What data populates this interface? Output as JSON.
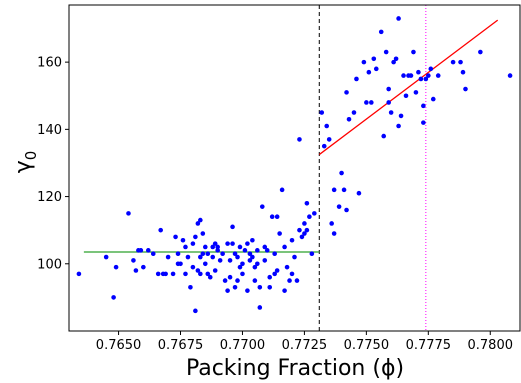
{
  "chart_data": {
    "type": "scatter",
    "title": "",
    "xlabel": "Packing Fraction (ϕ)",
    "ylabel_main": "γ",
    "ylabel_sub": "0",
    "xlim": [
      0.763,
      0.7812
    ],
    "ylim": [
      80,
      177
    ],
    "xticks": [
      0.765,
      0.7675,
      0.77,
      0.7725,
      0.775,
      0.7775,
      0.78
    ],
    "xtick_labels": [
      "0.7650",
      "0.7675",
      "0.7700",
      "0.7725",
      "0.7750",
      "0.7775",
      "0.7800"
    ],
    "yticks": [
      100,
      120,
      140,
      160
    ],
    "ytick_labels": [
      "100",
      "120",
      "140",
      "160"
    ],
    "grid": false,
    "colors": {
      "points": "#0000ff",
      "fit_low": "#2ca02c",
      "fit_high": "#ff0000",
      "vline_dashed": "#000000",
      "vline_dotted": "#ff00ff"
    },
    "series": [
      {
        "values": [
          [
            0.7634,
            97
          ],
          [
            0.7645,
            102
          ],
          [
            0.7648,
            90
          ],
          [
            0.7649,
            99
          ],
          [
            0.7654,
            115
          ],
          [
            0.7656,
            101
          ],
          [
            0.7657,
            98
          ],
          [
            0.7658,
            104
          ],
          [
            0.7659,
            104
          ],
          [
            0.766,
            99
          ],
          [
            0.7662,
            104
          ],
          [
            0.7664,
            103
          ],
          [
            0.7666,
            97
          ],
          [
            0.7667,
            110
          ],
          [
            0.7668,
            97
          ],
          [
            0.7669,
            97
          ],
          [
            0.767,
            102
          ],
          [
            0.7672,
            97
          ],
          [
            0.7673,
            108
          ],
          [
            0.7674,
            100
          ],
          [
            0.7674,
            103
          ],
          [
            0.7675,
            100
          ],
          [
            0.7676,
            107
          ],
          [
            0.7677,
            97
          ],
          [
            0.7677,
            105
          ],
          [
            0.7678,
            102
          ],
          [
            0.7679,
            93
          ],
          [
            0.768,
            106
          ],
          [
            0.768,
            99
          ],
          [
            0.7681,
            86
          ],
          [
            0.7681,
            108
          ],
          [
            0.7682,
            112
          ],
          [
            0.7682,
            98
          ],
          [
            0.7683,
            97
          ],
          [
            0.7683,
            102
          ],
          [
            0.7683,
            113
          ],
          [
            0.7684,
            103
          ],
          [
            0.7684,
            109
          ],
          [
            0.7685,
            100
          ],
          [
            0.7685,
            105
          ],
          [
            0.7686,
            97
          ],
          [
            0.7686,
            103
          ],
          [
            0.7687,
            96
          ],
          [
            0.7688,
            102
          ],
          [
            0.7688,
            105
          ],
          [
            0.7689,
            106
          ],
          [
            0.7689,
            98
          ],
          [
            0.769,
            104
          ],
          [
            0.769,
            105
          ],
          [
            0.7691,
            101
          ],
          [
            0.7692,
            103
          ],
          [
            0.7693,
            95
          ],
          [
            0.7694,
            92
          ],
          [
            0.7694,
            106
          ],
          [
            0.7695,
            101
          ],
          [
            0.7695,
            96
          ],
          [
            0.7696,
            106
          ],
          [
            0.7696,
            111
          ],
          [
            0.7697,
            93
          ],
          [
            0.7697,
            103
          ],
          [
            0.7698,
            95
          ],
          [
            0.7698,
            102
          ],
          [
            0.7699,
            105
          ],
          [
            0.7699,
            99
          ],
          [
            0.77,
            100
          ],
          [
            0.77,
            97
          ],
          [
            0.7701,
            104
          ],
          [
            0.7702,
            92
          ],
          [
            0.7702,
            106
          ],
          [
            0.7703,
            103
          ],
          [
            0.7703,
            101
          ],
          [
            0.7704,
            107
          ],
          [
            0.7704,
            102
          ],
          [
            0.7705,
            95
          ],
          [
            0.7705,
            99
          ],
          [
            0.7706,
            104
          ],
          [
            0.7706,
            100
          ],
          [
            0.7707,
            87
          ],
          [
            0.7707,
            93
          ],
          [
            0.7708,
            117
          ],
          [
            0.7709,
            101
          ],
          [
            0.7709,
            105
          ],
          [
            0.771,
            104
          ],
          [
            0.7711,
            96
          ],
          [
            0.7711,
            93
          ],
          [
            0.7712,
            114
          ],
          [
            0.7713,
            97
          ],
          [
            0.7713,
            103
          ],
          [
            0.7714,
            98
          ],
          [
            0.7714,
            114
          ],
          [
            0.7715,
            109
          ],
          [
            0.7716,
            122
          ],
          [
            0.7717,
            105
          ],
          [
            0.7717,
            92
          ],
          [
            0.7718,
            99
          ],
          [
            0.7719,
            95
          ],
          [
            0.772,
            97
          ],
          [
            0.772,
            107
          ],
          [
            0.7721,
            102
          ],
          [
            0.7722,
            95
          ],
          [
            0.7723,
            110
          ],
          [
            0.7723,
            137
          ],
          [
            0.7724,
            108
          ],
          [
            0.7725,
            109
          ],
          [
            0.7725,
            112
          ],
          [
            0.7726,
            118
          ],
          [
            0.7726,
            110
          ],
          [
            0.7727,
            114
          ],
          [
            0.7728,
            103
          ],
          [
            0.7729,
            115
          ],
          [
            0.7732,
            145
          ],
          [
            0.7733,
            135
          ],
          [
            0.7734,
            141
          ],
          [
            0.7735,
            137
          ],
          [
            0.7736,
            112
          ],
          [
            0.7737,
            122
          ],
          [
            0.7737,
            109
          ],
          [
            0.7739,
            117
          ],
          [
            0.774,
            127
          ],
          [
            0.7741,
            122
          ],
          [
            0.7742,
            116
          ],
          [
            0.7742,
            151
          ],
          [
            0.7743,
            143
          ],
          [
            0.7745,
            145
          ],
          [
            0.7746,
            155
          ],
          [
            0.7747,
            121
          ],
          [
            0.7749,
            160
          ],
          [
            0.775,
            148
          ],
          [
            0.7751,
            157
          ],
          [
            0.7752,
            148
          ],
          [
            0.7753,
            161
          ],
          [
            0.7754,
            158
          ],
          [
            0.7756,
            169
          ],
          [
            0.7757,
            138
          ],
          [
            0.7758,
            163
          ],
          [
            0.7759,
            148
          ],
          [
            0.7759,
            152
          ],
          [
            0.776,
            145
          ],
          [
            0.7761,
            160
          ],
          [
            0.7762,
            161
          ],
          [
            0.7763,
            173
          ],
          [
            0.7763,
            141
          ],
          [
            0.7764,
            144
          ],
          [
            0.7765,
            156
          ],
          [
            0.7766,
            150
          ],
          [
            0.7767,
            156
          ],
          [
            0.7768,
            156
          ],
          [
            0.7769,
            163
          ],
          [
            0.777,
            151
          ],
          [
            0.7771,
            157
          ],
          [
            0.7772,
            155
          ],
          [
            0.7773,
            142
          ],
          [
            0.7773,
            147
          ],
          [
            0.7774,
            155
          ],
          [
            0.7775,
            156
          ],
          [
            0.7776,
            158
          ],
          [
            0.7777,
            149
          ],
          [
            0.7779,
            156
          ],
          [
            0.7785,
            160
          ],
          [
            0.7788,
            160
          ],
          [
            0.7789,
            157
          ],
          [
            0.779,
            152
          ],
          [
            0.7796,
            163
          ],
          [
            0.7808,
            156
          ]
        ]
      }
    ],
    "fit_lines": [
      {
        "x": [
          0.7636,
          0.7731
        ],
        "y": [
          103.5,
          103.5
        ]
      },
      {
        "x": [
          0.7731,
          0.7803
        ],
        "y": [
          132.5,
          172.5
        ]
      }
    ],
    "vlines": [
      {
        "x": 0.7731,
        "style": "dashed"
      },
      {
        "x": 0.7774,
        "style": "dotted"
      }
    ]
  }
}
